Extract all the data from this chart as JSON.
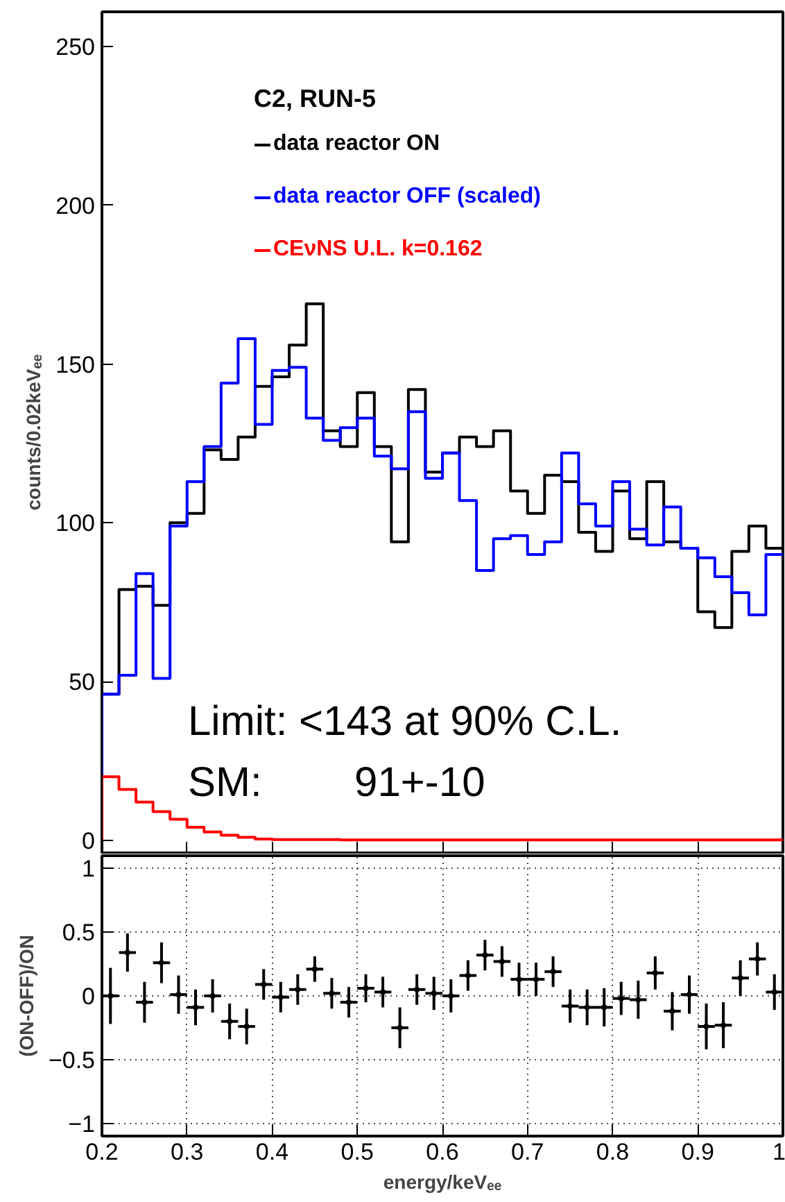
{
  "chart_data": [
    {
      "type": "histogram",
      "ylabel": "counts/0.02keVₑₑ",
      "legend_title": "C2, RUN-5",
      "legend": "top",
      "bins": [
        0.2,
        0.22,
        0.24,
        0.26,
        0.28,
        0.3,
        0.32,
        0.34,
        0.36,
        0.38,
        0.4,
        0.42,
        0.44,
        0.46,
        0.48,
        0.5,
        0.52,
        0.54,
        0.56,
        0.58,
        0.6,
        0.62,
        0.64,
        0.66,
        0.68,
        0.7,
        0.72,
        0.74,
        0.76,
        0.78,
        0.8,
        0.82,
        0.84,
        0.86,
        0.88,
        0.9,
        0.92,
        0.94,
        0.96,
        0.98,
        1.0
      ],
      "series": [
        {
          "name": "data reactor ON",
          "color": "#000000",
          "values": [
            46,
            79,
            80,
            74,
            100,
            103,
            123,
            120,
            127,
            143,
            146,
            156,
            169,
            129,
            124,
            141,
            124,
            94,
            142,
            116,
            122,
            127,
            124,
            129,
            110,
            103,
            115,
            113,
            97,
            91,
            110,
            95,
            113,
            94,
            92,
            72,
            67,
            91,
            99,
            92
          ]
        },
        {
          "name": "data reactor OFF (scaled)",
          "color": "#0000ff",
          "values": [
            46,
            52,
            84,
            51,
            99,
            113,
            124,
            144,
            158,
            131,
            148,
            149,
            133,
            126,
            130,
            133,
            121,
            117,
            135,
            114,
            122,
            107,
            85,
            95,
            96,
            90,
            94,
            122,
            106,
            99,
            113,
            98,
            93,
            105,
            92,
            89,
            83,
            78,
            71,
            90
          ]
        },
        {
          "name": "CEνNS U.L. k=0.162",
          "color": "#ff0000",
          "values": [
            20,
            16,
            12,
            9,
            6.6,
            4.1,
            2.6,
            1.6,
            0.9,
            0.4,
            0.2,
            0.2,
            0.2,
            0.2,
            0.1,
            0.1,
            0.1,
            0.1,
            0.1,
            0.1,
            0.1,
            0.1,
            0.1,
            0.1,
            0.1,
            0.1,
            0.1,
            0.1,
            0.1,
            0.1,
            0.1,
            0.1,
            0.1,
            0.1,
            0.1,
            0.1,
            0.1,
            0.1,
            0.1,
            0.1
          ]
        }
      ],
      "xlim": [
        0.2,
        1.0
      ],
      "xticks": [
        0.2,
        0.3,
        0.4,
        0.5,
        0.6,
        0.7,
        0.8,
        0.9,
        1.0
      ],
      "ylim": [
        -4,
        261
      ],
      "yticks": [
        0,
        50,
        100,
        150,
        200,
        250
      ],
      "tick_labels": "y",
      "grid": false,
      "annotations": [
        "Limit: <143 at 90% C.L.",
        "SM:        91+-10"
      ]
    },
    {
      "type": "scatter",
      "xlabel": "energy/keVₑₑ",
      "ylabel": "(ON-OFF)/ON",
      "marker": "circle",
      "grid": true,
      "x": [
        0.21,
        0.23,
        0.25,
        0.27,
        0.29,
        0.31,
        0.33,
        0.35,
        0.37,
        0.39,
        0.41,
        0.43,
        0.45,
        0.47,
        0.49,
        0.51,
        0.53,
        0.55,
        0.57,
        0.59,
        0.61,
        0.63,
        0.65,
        0.67,
        0.69,
        0.71,
        0.73,
        0.75,
        0.77,
        0.79,
        0.81,
        0.83,
        0.85,
        0.87,
        0.89,
        0.91,
        0.93,
        0.95,
        0.97,
        0.99
      ],
      "series": [
        {
          "color": "#000000",
          "values": [
            0.0,
            0.34,
            -0.05,
            0.26,
            0.01,
            -0.09,
            0.0,
            -0.2,
            -0.24,
            0.09,
            -0.01,
            0.05,
            0.21,
            0.02,
            -0.05,
            0.06,
            0.03,
            -0.25,
            0.05,
            0.02,
            0.0,
            0.16,
            0.32,
            0.27,
            0.13,
            0.13,
            0.19,
            -0.08,
            -0.09,
            -0.09,
            -0.02,
            -0.03,
            0.18,
            -0.12,
            0.01,
            -0.24,
            -0.23,
            0.14,
            0.29,
            0.03
          ],
          "errors": [
            0.22,
            0.15,
            0.16,
            0.16,
            0.15,
            0.14,
            0.13,
            0.14,
            0.14,
            0.12,
            0.12,
            0.12,
            0.1,
            0.12,
            0.12,
            0.11,
            0.12,
            0.16,
            0.12,
            0.13,
            0.13,
            0.12,
            0.12,
            0.12,
            0.13,
            0.13,
            0.12,
            0.13,
            0.14,
            0.15,
            0.13,
            0.15,
            0.13,
            0.15,
            0.15,
            0.18,
            0.18,
            0.14,
            0.13,
            0.14
          ],
          "xerrors": [
            0.01,
            0.01,
            0.01,
            0.01,
            0.01,
            0.01,
            0.01,
            0.01,
            0.01,
            0.01,
            0.01,
            0.01,
            0.01,
            0.01,
            0.01,
            0.01,
            0.01,
            0.01,
            0.01,
            0.01,
            0.01,
            0.01,
            0.01,
            0.01,
            0.01,
            0.01,
            0.01,
            0.01,
            0.01,
            0.01,
            0.01,
            0.01,
            0.01,
            0.01,
            0.01,
            0.01,
            0.01,
            0.01,
            0.01,
            0.01
          ]
        }
      ],
      "xlim": [
        0.2,
        1.0
      ],
      "xticks": [
        0.2,
        0.3,
        0.4,
        0.5,
        0.6,
        0.7,
        0.8,
        0.9,
        {
          "value": 1.0,
          "label": "1"
        }
      ],
      "ylim": [
        -1.1,
        1.1
      ],
      "yticks": [
        {
          "value": -1,
          "label": "−1"
        },
        {
          "value": -0.5,
          "label": "−0.5"
        },
        0,
        0.5,
        1
      ]
    }
  ]
}
